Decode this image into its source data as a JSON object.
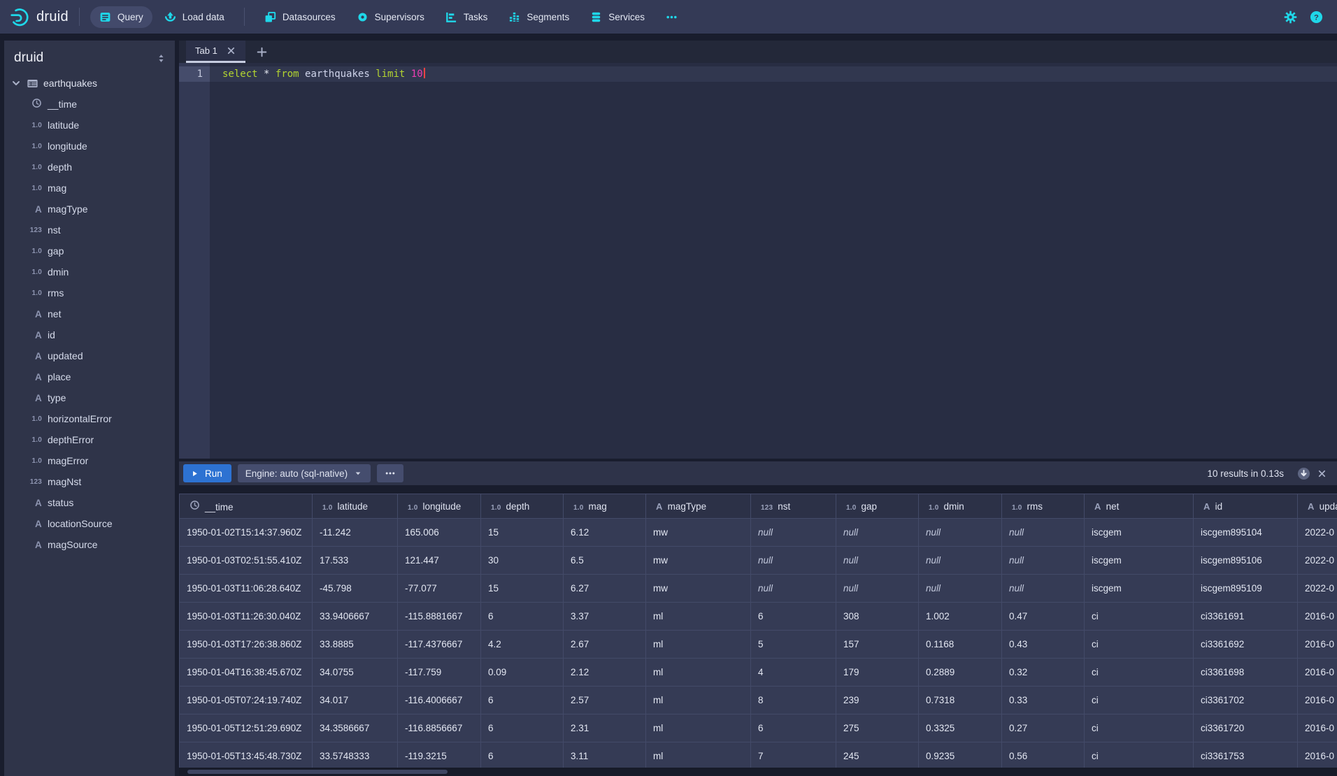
{
  "colors": {
    "accent_cyan": "#1fd7e9",
    "run_blue": "#2d72d2",
    "keyword": "#b3d430",
    "number": "#ee3db4",
    "tab_underline": "#c6cce0"
  },
  "navbar": {
    "brand": "druid",
    "items": [
      {
        "label": "Query",
        "icon": "query-icon",
        "active": true,
        "divider_before": true
      },
      {
        "label": "Load data",
        "icon": "load-data-icon",
        "active": false,
        "divider_before": false
      },
      {
        "label": "Datasources",
        "icon": "datasources-icon",
        "active": false,
        "divider_before": true
      },
      {
        "label": "Supervisors",
        "icon": "supervisors-icon",
        "active": false,
        "divider_before": false
      },
      {
        "label": "Tasks",
        "icon": "tasks-icon",
        "active": false,
        "divider_before": false
      },
      {
        "label": "Segments",
        "icon": "segments-icon",
        "active": false,
        "divider_before": false
      },
      {
        "label": "Services",
        "icon": "services-icon",
        "active": false,
        "divider_before": false
      },
      {
        "label": "",
        "icon": "more-icon",
        "active": false,
        "divider_before": false
      }
    ],
    "settings_icon": "settings-icon",
    "help_icon": "help-icon"
  },
  "sidebar": {
    "title": "druid",
    "table": {
      "name": "earthquakes"
    },
    "columns": [
      {
        "name": "__time",
        "type": "time"
      },
      {
        "name": "latitude",
        "type": "float"
      },
      {
        "name": "longitude",
        "type": "float"
      },
      {
        "name": "depth",
        "type": "float"
      },
      {
        "name": "mag",
        "type": "float"
      },
      {
        "name": "magType",
        "type": "string"
      },
      {
        "name": "nst",
        "type": "long"
      },
      {
        "name": "gap",
        "type": "float"
      },
      {
        "name": "dmin",
        "type": "float"
      },
      {
        "name": "rms",
        "type": "float"
      },
      {
        "name": "net",
        "type": "string"
      },
      {
        "name": "id",
        "type": "string"
      },
      {
        "name": "updated",
        "type": "string"
      },
      {
        "name": "place",
        "type": "string"
      },
      {
        "name": "type",
        "type": "string"
      },
      {
        "name": "horizontalError",
        "type": "float"
      },
      {
        "name": "depthError",
        "type": "float"
      },
      {
        "name": "magError",
        "type": "float"
      },
      {
        "name": "magNst",
        "type": "long"
      },
      {
        "name": "status",
        "type": "string"
      },
      {
        "name": "locationSource",
        "type": "string"
      },
      {
        "name": "magSource",
        "type": "string"
      }
    ]
  },
  "editor": {
    "tabs": [
      {
        "label": "Tab 1"
      }
    ],
    "line_number": "1",
    "sql_tokens": [
      {
        "text": "select",
        "type": "keyword"
      },
      {
        "text": "*",
        "type": "operator"
      },
      {
        "text": "from",
        "type": "keyword"
      },
      {
        "text": "earthquakes",
        "type": "identifier"
      },
      {
        "text": "limit",
        "type": "keyword"
      },
      {
        "text": "10",
        "type": "number"
      }
    ]
  },
  "runbar": {
    "run_label": "Run",
    "engine_label": "Engine: auto (sql-native)",
    "results_summary": "10 results in 0.13s"
  },
  "results": {
    "columns": [
      {
        "name": "__time",
        "type": "time"
      },
      {
        "name": "latitude",
        "type": "float"
      },
      {
        "name": "longitude",
        "type": "float"
      },
      {
        "name": "depth",
        "type": "float"
      },
      {
        "name": "mag",
        "type": "float"
      },
      {
        "name": "magType",
        "type": "string"
      },
      {
        "name": "nst",
        "type": "long"
      },
      {
        "name": "gap",
        "type": "float"
      },
      {
        "name": "dmin",
        "type": "float"
      },
      {
        "name": "rms",
        "type": "float"
      },
      {
        "name": "net",
        "type": "string"
      },
      {
        "name": "id",
        "type": "string"
      },
      {
        "name": "updated",
        "type": "string"
      }
    ],
    "rows": [
      [
        "1950-01-02T15:14:37.960Z",
        "-11.242",
        "165.006",
        "15",
        "6.12",
        "mw",
        "null",
        "null",
        "null",
        "null",
        "iscgem",
        "iscgem895104",
        "2022-0"
      ],
      [
        "1950-01-03T02:51:55.410Z",
        "17.533",
        "121.447",
        "30",
        "6.5",
        "mw",
        "null",
        "null",
        "null",
        "null",
        "iscgem",
        "iscgem895106",
        "2022-0"
      ],
      [
        "1950-01-03T11:06:28.640Z",
        "-45.798",
        "-77.077",
        "15",
        "6.27",
        "mw",
        "null",
        "null",
        "null",
        "null",
        "iscgem",
        "iscgem895109",
        "2022-0"
      ],
      [
        "1950-01-03T11:26:30.040Z",
        "33.9406667",
        "-115.8881667",
        "6",
        "3.37",
        "ml",
        "6",
        "308",
        "1.002",
        "0.47",
        "ci",
        "ci3361691",
        "2016-0"
      ],
      [
        "1950-01-03T17:26:38.860Z",
        "33.8885",
        "-117.4376667",
        "4.2",
        "2.67",
        "ml",
        "5",
        "157",
        "0.1168",
        "0.43",
        "ci",
        "ci3361692",
        "2016-0"
      ],
      [
        "1950-01-04T16:38:45.670Z",
        "34.0755",
        "-117.759",
        "0.09",
        "2.12",
        "ml",
        "4",
        "179",
        "0.2889",
        "0.32",
        "ci",
        "ci3361698",
        "2016-0"
      ],
      [
        "1950-01-05T07:24:19.740Z",
        "34.017",
        "-116.4006667",
        "6",
        "2.57",
        "ml",
        "8",
        "239",
        "0.7318",
        "0.33",
        "ci",
        "ci3361702",
        "2016-0"
      ],
      [
        "1950-01-05T12:51:29.690Z",
        "34.3586667",
        "-116.8856667",
        "6",
        "2.31",
        "ml",
        "6",
        "275",
        "0.3325",
        "0.27",
        "ci",
        "ci3361720",
        "2016-0"
      ],
      [
        "1950-01-05T13:45:48.730Z",
        "33.5748333",
        "-119.3215",
        "6",
        "3.11",
        "ml",
        "7",
        "245",
        "0.9235",
        "0.56",
        "ci",
        "ci3361753",
        "2016-0"
      ],
      [
        "",
        "",
        "",
        "",
        "",
        "",
        "",
        "",
        "",
        "",
        "",
        "",
        ""
      ]
    ]
  }
}
